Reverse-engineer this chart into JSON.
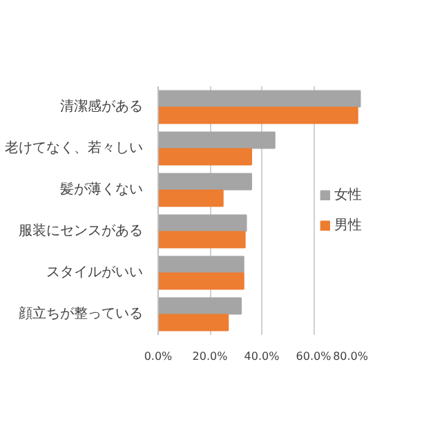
{
  "chart_data": {
    "type": "bar",
    "orientation": "horizontal",
    "categories": [
      "清潔感がある",
      "老けてなく、若々しい",
      "髪が薄くない",
      "服装にセンスがある",
      "スタイルがいい",
      "顔立ちが整っている"
    ],
    "series": [
      {
        "name": "女性",
        "color": "#a5a5a5",
        "values": [
          78,
          45,
          36,
          34,
          33,
          32
        ]
      },
      {
        "name": "男性",
        "color": "#ed7d31",
        "values": [
          77,
          36,
          25,
          33.5,
          33,
          27
        ]
      }
    ],
    "xlim": [
      0,
      80
    ],
    "xticks": [
      {
        "value": 0,
        "label": "0.0%"
      },
      {
        "value": 20,
        "label": "20.0%"
      },
      {
        "value": 40,
        "label": "40.0%"
      },
      {
        "value": 60,
        "label": "60.0%"
      },
      {
        "value": 80,
        "label": "80.0%"
      }
    ],
    "grid": "x",
    "legend": "right"
  }
}
